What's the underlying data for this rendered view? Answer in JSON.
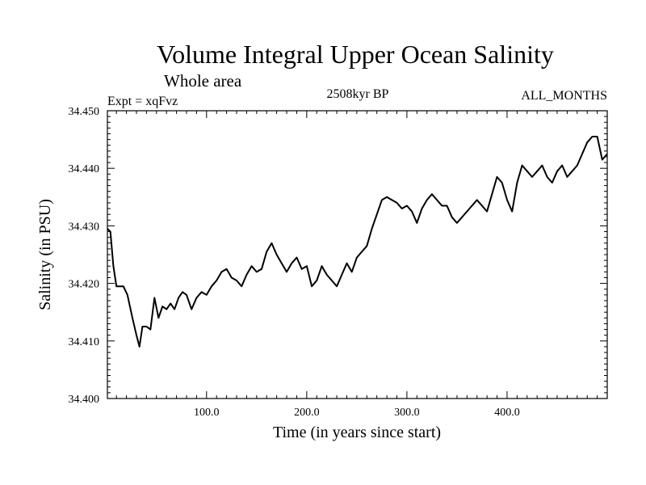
{
  "chart_data": {
    "type": "line",
    "title": "Volume Integral Upper Ocean Salinity",
    "subtitle": "Whole area",
    "experiment": "Expt = xqFvz",
    "period": "2508kyr BP",
    "months": "ALL_MONTHS",
    "xlabel": "Time (in years since start)",
    "ylabel": "Salinity (in PSU)",
    "xlim": [
      1,
      500
    ],
    "ylim": [
      34.4,
      34.45
    ],
    "xticks": [
      100,
      200,
      300,
      400
    ],
    "xtick_labels": [
      "100.0",
      "200.0",
      "300.0",
      "400.0"
    ],
    "yticks": [
      34.4,
      34.41,
      34.42,
      34.43,
      34.44,
      34.45
    ],
    "ytick_labels": [
      "34.400",
      "34.410",
      "34.420",
      "34.430",
      "34.440",
      "34.450"
    ],
    "series": [
      {
        "name": "Salinity",
        "x": [
          1,
          4,
          7,
          10,
          13,
          17,
          21,
          26,
          30,
          33,
          36,
          40,
          44,
          48,
          52,
          56,
          60,
          64,
          68,
          72,
          76,
          80,
          85,
          90,
          95,
          100,
          105,
          110,
          115,
          120,
          125,
          130,
          135,
          140,
          145,
          150,
          155,
          160,
          165,
          170,
          175,
          180,
          185,
          190,
          195,
          200,
          205,
          210,
          215,
          220,
          225,
          230,
          235,
          240,
          245,
          250,
          255,
          260,
          265,
          270,
          275,
          280,
          285,
          290,
          295,
          300,
          305,
          310,
          315,
          320,
          325,
          330,
          335,
          340,
          345,
          350,
          355,
          360,
          365,
          370,
          375,
          380,
          385,
          390,
          395,
          400,
          405,
          410,
          415,
          420,
          425,
          430,
          435,
          440,
          445,
          450,
          455,
          460,
          465,
          470,
          475,
          480,
          485,
          490,
          495,
          500
        ],
        "values": [
          34.4295,
          34.429,
          34.423,
          34.4195,
          34.4195,
          34.4195,
          34.418,
          34.414,
          34.411,
          34.409,
          34.4125,
          34.4125,
          34.412,
          34.4175,
          34.414,
          34.416,
          34.4155,
          34.4165,
          34.4155,
          34.4175,
          34.4185,
          34.418,
          34.4155,
          34.4175,
          34.4185,
          34.418,
          34.4195,
          34.4205,
          34.422,
          34.4225,
          34.421,
          34.4205,
          34.4195,
          34.4215,
          34.423,
          34.422,
          34.4225,
          34.4255,
          34.427,
          34.425,
          34.4235,
          34.422,
          34.4235,
          34.4245,
          34.4225,
          34.423,
          34.4195,
          34.4205,
          34.423,
          34.4215,
          34.4205,
          34.4195,
          34.4215,
          34.4235,
          34.422,
          34.4245,
          34.4255,
          34.4265,
          34.4295,
          34.432,
          34.4345,
          34.435,
          34.4345,
          34.434,
          34.433,
          34.4335,
          34.4325,
          34.4305,
          34.433,
          34.4345,
          34.4355,
          34.4345,
          34.4335,
          34.4335,
          34.4315,
          34.4305,
          34.4315,
          34.4325,
          34.4335,
          34.4345,
          34.4335,
          34.4325,
          34.4355,
          34.4385,
          34.4375,
          34.4345,
          34.4325,
          34.4375,
          34.4405,
          34.4395,
          34.4385,
          34.4395,
          34.4405,
          34.4385,
          34.4375,
          34.4395,
          34.4405,
          34.4385,
          34.4395,
          34.4405,
          34.4425,
          34.4445,
          34.4455,
          34.4455,
          34.4415,
          34.4425
        ]
      }
    ]
  }
}
